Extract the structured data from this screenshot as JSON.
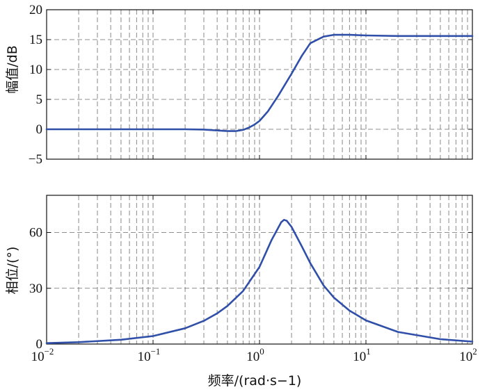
{
  "chart_data": [
    {
      "type": "line",
      "title": "",
      "xlabel": "",
      "ylabel": "幅值/dB",
      "xscale": "log",
      "xlim": [
        0.01,
        100
      ],
      "ylim": [
        -5,
        20
      ],
      "yticks": [
        "−5",
        "0",
        "5",
        "10",
        "15",
        "20"
      ],
      "grid": true,
      "color": "#2f4fa8",
      "series": [
        {
          "x": [
            0.01,
            0.02,
            0.05,
            0.1,
            0.2,
            0.3,
            0.4,
            0.5,
            0.6,
            0.7,
            0.8,
            0.9,
            1.0,
            1.2,
            1.5,
            2.0,
            2.5,
            3.0,
            4.0,
            5.0,
            7.0,
            10,
            20,
            50,
            100
          ],
          "y": [
            0,
            0,
            0,
            0,
            0,
            -0.05,
            -0.2,
            -0.3,
            -0.3,
            -0.1,
            0.3,
            0.8,
            1.4,
            3.0,
            5.6,
            9.3,
            12.3,
            14.4,
            15.5,
            15.8,
            15.8,
            15.7,
            15.6,
            15.6,
            15.6
          ]
        }
      ]
    },
    {
      "type": "line",
      "title": "",
      "xlabel": "频率/(rad·s−1)",
      "ylabel": "相位/(°)",
      "xscale": "log",
      "xlim": [
        0.01,
        100
      ],
      "ylim": [
        0,
        80
      ],
      "yticks": [
        "0",
        "30",
        "60"
      ],
      "xticks": [
        {
          "base": "10",
          "exp": "−2"
        },
        {
          "base": "10",
          "exp": "−1"
        },
        {
          "base": "10",
          "exp": "0"
        },
        {
          "base": "10",
          "exp": "1"
        },
        {
          "base": "10",
          "exp": "2"
        }
      ],
      "grid": true,
      "color": "#2f4fa8",
      "series": [
        {
          "x": [
            0.01,
            0.02,
            0.05,
            0.1,
            0.2,
            0.3,
            0.4,
            0.5,
            0.7,
            1.0,
            1.3,
            1.6,
            1.7,
            1.8,
            2.0,
            2.5,
            3.0,
            4.0,
            5.0,
            7.0,
            10,
            20,
            50,
            100
          ],
          "y": [
            0.5,
            1.0,
            2.3,
            4.3,
            8.5,
            12.5,
            16.5,
            20.5,
            28.5,
            41.5,
            56,
            65.5,
            66.8,
            66.3,
            63,
            52.5,
            43.5,
            31.5,
            25,
            18,
            12.7,
            6.5,
            2.6,
            1.3
          ]
        }
      ]
    }
  ]
}
